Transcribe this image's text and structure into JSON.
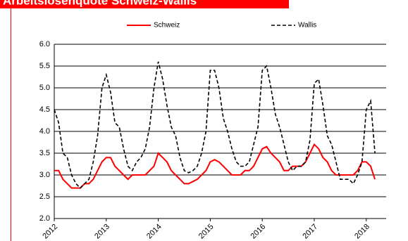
{
  "chart_data": {
    "type": "line",
    "title": "Arbeitslosenquote Schweiz-Wallis",
    "categories": [
      "2012",
      null,
      null,
      null,
      null,
      null,
      null,
      null,
      null,
      null,
      null,
      null,
      "2013",
      null,
      null,
      null,
      null,
      null,
      null,
      null,
      null,
      null,
      null,
      null,
      "2014",
      null,
      null,
      null,
      null,
      null,
      null,
      null,
      null,
      null,
      null,
      null,
      "2015",
      null,
      null,
      null,
      null,
      null,
      null,
      null,
      null,
      null,
      null,
      null,
      "2016",
      null,
      null,
      null,
      null,
      null,
      null,
      null,
      null,
      null,
      null,
      null,
      "2017",
      null,
      null,
      null,
      null,
      null,
      null,
      null,
      null,
      null,
      null,
      null,
      "2018",
      null,
      null
    ],
    "series": [
      {
        "name": "Schweiz",
        "color": "#ff0000",
        "dash": false,
        "values": [
          3.1,
          3.1,
          2.9,
          2.8,
          2.7,
          2.7,
          2.7,
          2.8,
          2.8,
          2.9,
          3.1,
          3.3,
          3.4,
          3.4,
          3.2,
          3.1,
          3.0,
          2.9,
          3.0,
          3.0,
          3.0,
          3.0,
          3.1,
          3.2,
          3.5,
          3.4,
          3.3,
          3.1,
          3.0,
          2.9,
          2.8,
          2.8,
          2.85,
          2.9,
          3.0,
          3.1,
          3.3,
          3.35,
          3.3,
          3.2,
          3.1,
          3.0,
          3.0,
          3.0,
          3.1,
          3.1,
          3.2,
          3.4,
          3.6,
          3.65,
          3.5,
          3.4,
          3.3,
          3.1,
          3.1,
          3.2,
          3.2,
          3.2,
          3.3,
          3.5,
          3.7,
          3.6,
          3.4,
          3.3,
          3.1,
          3.0,
          3.0,
          3.0,
          3.0,
          3.0,
          3.1,
          3.3,
          3.3,
          3.2,
          2.9
        ]
      },
      {
        "name": "Wallis",
        "color": "#000000",
        "dash": true,
        "values": [
          4.5,
          4.2,
          3.5,
          3.4,
          3.0,
          2.8,
          2.7,
          2.8,
          2.9,
          3.3,
          3.9,
          5.0,
          5.3,
          4.9,
          4.2,
          4.1,
          3.6,
          3.2,
          3.1,
          3.3,
          3.4,
          3.6,
          4.1,
          5.0,
          5.6,
          5.2,
          4.6,
          4.1,
          3.9,
          3.4,
          3.1,
          3.05,
          3.1,
          3.2,
          3.5,
          4.0,
          5.4,
          5.4,
          5.0,
          4.3,
          4.0,
          3.6,
          3.3,
          3.2,
          3.2,
          3.3,
          3.7,
          4.1,
          5.4,
          5.5,
          5.0,
          4.4,
          4.1,
          3.7,
          3.3,
          3.1,
          3.2,
          3.2,
          3.3,
          3.8,
          5.1,
          5.2,
          4.6,
          3.9,
          3.7,
          3.3,
          2.9,
          2.9,
          2.9,
          2.8,
          3.0,
          3.3,
          4.5,
          4.7,
          3.5
        ]
      }
    ],
    "ylim": [
      2,
      6
    ],
    "yticks": [
      {
        "value": 2,
        "label": "2.0"
      },
      {
        "value": 2.5,
        "label": "2.5"
      },
      {
        "value": 3,
        "label": "3.0"
      },
      {
        "value": 3.5,
        "label": "3.5"
      },
      {
        "value": 4,
        "label": "4.0"
      },
      {
        "value": 4.5,
        "label": "4.5"
      },
      {
        "value": 5,
        "label": "5.0"
      },
      {
        "value": 5.5,
        "label": "5.5"
      },
      {
        "value": 6,
        "label": "6.0"
      }
    ],
    "grid": true
  }
}
